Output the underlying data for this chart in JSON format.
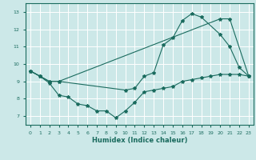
{
  "xlabel": "Humidex (Indice chaleur)",
  "bg_color": "#cce8e8",
  "line_color": "#1a6b5e",
  "grid_color": "#ffffff",
  "xlim": [
    -0.5,
    23.5
  ],
  "ylim": [
    6.5,
    13.5
  ],
  "yticks": [
    7,
    8,
    9,
    10,
    11,
    12,
    13
  ],
  "xticks": [
    0,
    1,
    2,
    3,
    4,
    5,
    6,
    7,
    8,
    9,
    10,
    11,
    12,
    13,
    14,
    15,
    16,
    17,
    18,
    19,
    20,
    21,
    22,
    23
  ],
  "line1_x": [
    0,
    1,
    2,
    3,
    20,
    21,
    23
  ],
  "line1_y": [
    9.6,
    9.3,
    9.0,
    9.0,
    12.6,
    12.6,
    9.3
  ],
  "line2_x": [
    0,
    1,
    2,
    3,
    10,
    11,
    12,
    13,
    14,
    15,
    16,
    17,
    18,
    20,
    21,
    22,
    23
  ],
  "line2_y": [
    9.6,
    9.3,
    9.0,
    9.0,
    8.5,
    8.6,
    9.3,
    9.5,
    11.1,
    11.5,
    12.5,
    12.9,
    12.7,
    11.7,
    11.0,
    9.8,
    9.3
  ],
  "line3_x": [
    0,
    1,
    2,
    3,
    4,
    5,
    6,
    7,
    8,
    9,
    10,
    11,
    12,
    13,
    14,
    15,
    16,
    17,
    18,
    19,
    20,
    21,
    22,
    23
  ],
  "line3_y": [
    9.6,
    9.3,
    8.9,
    8.2,
    8.1,
    7.7,
    7.6,
    7.3,
    7.3,
    6.9,
    7.3,
    7.8,
    8.4,
    8.5,
    8.6,
    8.7,
    9.0,
    9.1,
    9.2,
    9.3,
    9.4,
    9.4,
    9.4,
    9.3
  ]
}
